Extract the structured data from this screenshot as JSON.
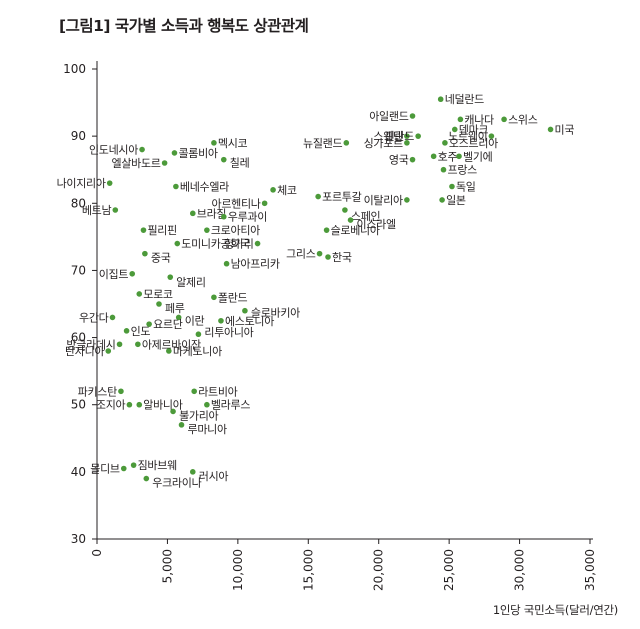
{
  "title": "[그림1] 국가별 소득과 행복도 상관관계",
  "chart_data": {
    "type": "scatter",
    "title": "[그림1] 국가별 소득과 행복도 상관관계",
    "xlabel": "1인당 국민소득(달러/연간)",
    "ylabel": "",
    "xlim": [
      0,
      35000
    ],
    "ylim": [
      30,
      100
    ],
    "xticks": [
      0,
      5000,
      10000,
      15000,
      20000,
      25000,
      30000,
      35000
    ],
    "xtick_labels": [
      "0",
      "5,000",
      "10,000",
      "15,000",
      "20,000",
      "25,000",
      "30,000",
      "35,000"
    ],
    "yticks": [
      30,
      40,
      50,
      60,
      70,
      80,
      90,
      100
    ],
    "ytick_labels": [
      "30",
      "40",
      "50",
      "60",
      "70",
      "80",
      "90",
      "100"
    ],
    "grid": false,
    "marker_color": "#4c9a3a",
    "points": [
      {
        "label": "네덜란드",
        "x": 24400,
        "y": 95.5
      },
      {
        "label": "아일랜드",
        "x": 22400,
        "y": 93
      },
      {
        "label": "캐나다",
        "x": 25800,
        "y": 92.5
      },
      {
        "label": "스위스",
        "x": 28900,
        "y": 92.5
      },
      {
        "label": "덴마크",
        "x": 25400,
        "y": 91
      },
      {
        "label": "미국",
        "x": 32200,
        "y": 91
      },
      {
        "label": "스웨덴",
        "x": 22000,
        "y": 90
      },
      {
        "label": "핀란드",
        "x": 22800,
        "y": 90
      },
      {
        "label": "노르웨이",
        "x": 28000,
        "y": 90
      },
      {
        "label": "뉴질랜드",
        "x": 17700,
        "y": 89
      },
      {
        "label": "싱가포르",
        "x": 22000,
        "y": 89
      },
      {
        "label": "오스트리아",
        "x": 24700,
        "y": 89
      },
      {
        "label": "영국",
        "x": 22400,
        "y": 86.5
      },
      {
        "label": "호주",
        "x": 23900,
        "y": 87
      },
      {
        "label": "벨기에",
        "x": 25700,
        "y": 87
      },
      {
        "label": "프랑스",
        "x": 24600,
        "y": 85
      },
      {
        "label": "독일",
        "x": 25200,
        "y": 82.5
      },
      {
        "label": "이탈리아",
        "x": 22000,
        "y": 80.5
      },
      {
        "label": "일본",
        "x": 24500,
        "y": 80.5
      },
      {
        "label": "포르투갈",
        "x": 15700,
        "y": 81
      },
      {
        "label": "스페인",
        "x": 17600,
        "y": 79
      },
      {
        "label": "이스라엘",
        "x": 18000,
        "y": 77.5
      },
      {
        "label": "체코",
        "x": 12500,
        "y": 82
      },
      {
        "label": "아르헨티나",
        "x": 11900,
        "y": 80
      },
      {
        "label": "슬로베니아",
        "x": 16300,
        "y": 76
      },
      {
        "label": "헝가리",
        "x": 11400,
        "y": 74
      },
      {
        "label": "그리스",
        "x": 15800,
        "y": 72.5
      },
      {
        "label": "한국",
        "x": 16400,
        "y": 72
      },
      {
        "label": "남아프리카",
        "x": 9200,
        "y": 71
      },
      {
        "label": "인도네시아",
        "x": 3200,
        "y": 88
      },
      {
        "label": "콜롬비아",
        "x": 5500,
        "y": 87.5
      },
      {
        "label": "멕시코",
        "x": 8300,
        "y": 89
      },
      {
        "label": "엘살바도르",
        "x": 4800,
        "y": 86
      },
      {
        "label": "칠레",
        "x": 9000,
        "y": 86.5
      },
      {
        "label": "나이지리아",
        "x": 900,
        "y": 83
      },
      {
        "label": "베네수엘라",
        "x": 5600,
        "y": 82.5
      },
      {
        "label": "베트남",
        "x": 1300,
        "y": 79
      },
      {
        "label": "브라질",
        "x": 6800,
        "y": 78.5
      },
      {
        "label": "우루과이",
        "x": 9000,
        "y": 78
      },
      {
        "label": "필리핀",
        "x": 3300,
        "y": 76
      },
      {
        "label": "크로아티아",
        "x": 7800,
        "y": 76
      },
      {
        "label": "도미니카공화국",
        "x": 5700,
        "y": 74
      },
      {
        "label": "중국",
        "x": 3400,
        "y": 72.5
      },
      {
        "label": "이집트",
        "x": 2500,
        "y": 69.5
      },
      {
        "label": "알제리",
        "x": 5200,
        "y": 69
      },
      {
        "label": "모로코",
        "x": 3000,
        "y": 66.5
      },
      {
        "label": "페루",
        "x": 4400,
        "y": 65
      },
      {
        "label": "폴란드",
        "x": 8300,
        "y": 66
      },
      {
        "label": "슬로바키아",
        "x": 10500,
        "y": 64
      },
      {
        "label": "이란",
        "x": 5800,
        "y": 63
      },
      {
        "label": "우간다",
        "x": 1100,
        "y": 63
      },
      {
        "label": "요르단",
        "x": 3700,
        "y": 62
      },
      {
        "label": "에스토니아",
        "x": 8800,
        "y": 62.5
      },
      {
        "label": "인도",
        "x": 2100,
        "y": 61
      },
      {
        "label": "리투아니아",
        "x": 7200,
        "y": 60.5
      },
      {
        "label": "방글라데시",
        "x": 1600,
        "y": 59
      },
      {
        "label": "아제르바이잔",
        "x": 2900,
        "y": 59
      },
      {
        "label": "탄자니아",
        "x": 800,
        "y": 58
      },
      {
        "label": "마케도니아",
        "x": 5100,
        "y": 58
      },
      {
        "label": "파키스탄",
        "x": 1700,
        "y": 52
      },
      {
        "label": "라트비아",
        "x": 6900,
        "y": 52
      },
      {
        "label": "조지아",
        "x": 2300,
        "y": 50
      },
      {
        "label": "알바니아",
        "x": 3000,
        "y": 50
      },
      {
        "label": "벨라루스",
        "x": 7800,
        "y": 50
      },
      {
        "label": "불가리아",
        "x": 5400,
        "y": 49
      },
      {
        "label": "루마니아",
        "x": 6000,
        "y": 47
      },
      {
        "label": "몰디브",
        "x": 1900,
        "y": 40.5
      },
      {
        "label": "짐바브웨",
        "x": 2600,
        "y": 41
      },
      {
        "label": "러시아",
        "x": 6800,
        "y": 40
      },
      {
        "label": "우크라이나",
        "x": 3500,
        "y": 39
      }
    ]
  }
}
